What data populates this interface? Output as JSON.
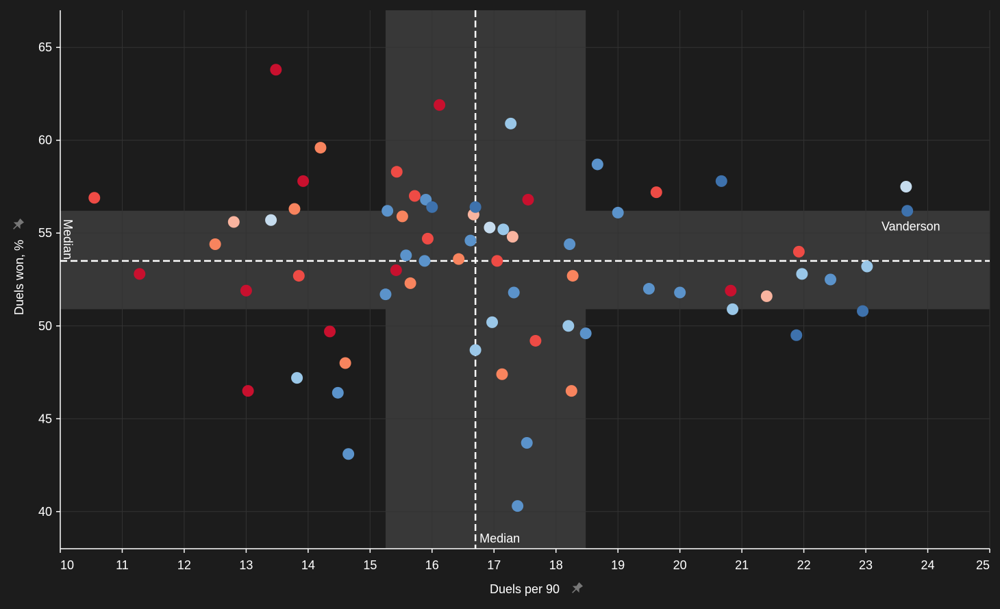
{
  "chart_data": {
    "type": "scatter",
    "xlabel": "Duels per 90",
    "ylabel": "Duels won, %",
    "xlim": [
      10,
      25
    ],
    "ylim": [
      38,
      67
    ],
    "x_ticks": [
      10,
      11,
      12,
      13,
      14,
      15,
      16,
      17,
      18,
      19,
      20,
      21,
      22,
      23,
      24,
      25
    ],
    "y_ticks": [
      40,
      45,
      50,
      55,
      60,
      65
    ],
    "grid": true,
    "median": {
      "x": 16.7,
      "y": 53.5,
      "x_label": "Median",
      "y_label": "Median"
    },
    "bands": {
      "x_range": [
        15.25,
        18.48
      ],
      "y_range": [
        50.9,
        56.2
      ]
    },
    "colors": {
      "background": "#1c1c1c",
      "band": "#383838",
      "grid": "#333333",
      "dark_red": "#c8102e",
      "red": "#ee4b45",
      "salmon": "#f8845e",
      "light_salmon": "#f9b49f",
      "pale_blue": "#c6dcee",
      "light_blue": "#9ac7e8",
      "mid_blue": "#5b93cb",
      "dark_blue": "#3e72ad"
    },
    "points": [
      {
        "x": 10.55,
        "y": 56.9,
        "c": "red"
      },
      {
        "x": 11.28,
        "y": 52.8,
        "c": "dark_red"
      },
      {
        "x": 12.5,
        "y": 54.4,
        "c": "salmon"
      },
      {
        "x": 12.8,
        "y": 55.6,
        "c": "light_salmon"
      },
      {
        "x": 13.0,
        "y": 51.9,
        "c": "dark_red"
      },
      {
        "x": 13.03,
        "y": 46.5,
        "c": "dark_red"
      },
      {
        "x": 13.48,
        "y": 63.8,
        "c": "dark_red"
      },
      {
        "x": 13.4,
        "y": 55.7,
        "c": "pale_blue"
      },
      {
        "x": 13.78,
        "y": 56.3,
        "c": "salmon"
      },
      {
        "x": 13.85,
        "y": 52.7,
        "c": "red"
      },
      {
        "x": 13.92,
        "y": 57.8,
        "c": "dark_red"
      },
      {
        "x": 13.82,
        "y": 47.2,
        "c": "light_blue"
      },
      {
        "x": 14.2,
        "y": 59.6,
        "c": "salmon"
      },
      {
        "x": 14.35,
        "y": 49.7,
        "c": "dark_red"
      },
      {
        "x": 14.48,
        "y": 46.4,
        "c": "mid_blue"
      },
      {
        "x": 14.6,
        "y": 48.0,
        "c": "salmon"
      },
      {
        "x": 14.65,
        "y": 43.1,
        "c": "mid_blue"
      },
      {
        "x": 15.25,
        "y": 51.7,
        "c": "mid_blue"
      },
      {
        "x": 15.28,
        "y": 56.2,
        "c": "mid_blue"
      },
      {
        "x": 15.42,
        "y": 53.0,
        "c": "dark_red"
      },
      {
        "x": 15.43,
        "y": 58.3,
        "c": "red"
      },
      {
        "x": 15.52,
        "y": 55.9,
        "c": "salmon"
      },
      {
        "x": 15.58,
        "y": 53.8,
        "c": "mid_blue"
      },
      {
        "x": 15.65,
        "y": 52.3,
        "c": "salmon"
      },
      {
        "x": 15.72,
        "y": 57.0,
        "c": "red"
      },
      {
        "x": 15.88,
        "y": 53.5,
        "c": "mid_blue"
      },
      {
        "x": 15.9,
        "y": 56.8,
        "c": "mid_blue"
      },
      {
        "x": 15.93,
        "y": 54.7,
        "c": "red"
      },
      {
        "x": 16.0,
        "y": 56.4,
        "c": "dark_blue"
      },
      {
        "x": 16.12,
        "y": 61.9,
        "c": "dark_red"
      },
      {
        "x": 16.43,
        "y": 53.6,
        "c": "salmon"
      },
      {
        "x": 16.62,
        "y": 54.6,
        "c": "mid_blue"
      },
      {
        "x": 16.67,
        "y": 56.0,
        "c": "light_salmon"
      },
      {
        "x": 16.7,
        "y": 56.4,
        "c": "dark_blue"
      },
      {
        "x": 16.7,
        "y": 48.7,
        "c": "light_blue"
      },
      {
        "x": 16.93,
        "y": 55.3,
        "c": "pale_blue"
      },
      {
        "x": 16.97,
        "y": 50.2,
        "c": "light_blue"
      },
      {
        "x": 17.05,
        "y": 53.5,
        "c": "red"
      },
      {
        "x": 17.13,
        "y": 47.4,
        "c": "salmon"
      },
      {
        "x": 17.15,
        "y": 55.2,
        "c": "light_blue"
      },
      {
        "x": 17.27,
        "y": 60.9,
        "c": "light_blue"
      },
      {
        "x": 17.3,
        "y": 54.8,
        "c": "light_salmon"
      },
      {
        "x": 17.32,
        "y": 51.8,
        "c": "mid_blue"
      },
      {
        "x": 17.38,
        "y": 40.3,
        "c": "mid_blue"
      },
      {
        "x": 17.53,
        "y": 43.7,
        "c": "mid_blue"
      },
      {
        "x": 17.55,
        "y": 56.8,
        "c": "dark_red"
      },
      {
        "x": 17.67,
        "y": 49.2,
        "c": "red"
      },
      {
        "x": 18.2,
        "y": 50.0,
        "c": "light_blue"
      },
      {
        "x": 18.22,
        "y": 54.4,
        "c": "mid_blue"
      },
      {
        "x": 18.25,
        "y": 46.5,
        "c": "salmon"
      },
      {
        "x": 18.27,
        "y": 52.7,
        "c": "salmon"
      },
      {
        "x": 18.48,
        "y": 49.6,
        "c": "mid_blue"
      },
      {
        "x": 18.67,
        "y": 58.7,
        "c": "mid_blue"
      },
      {
        "x": 19.0,
        "y": 56.1,
        "c": "mid_blue"
      },
      {
        "x": 19.5,
        "y": 52.0,
        "c": "mid_blue"
      },
      {
        "x": 19.62,
        "y": 57.2,
        "c": "red"
      },
      {
        "x": 20.0,
        "y": 51.8,
        "c": "mid_blue"
      },
      {
        "x": 20.67,
        "y": 57.8,
        "c": "dark_blue"
      },
      {
        "x": 20.82,
        "y": 51.9,
        "c": "dark_red"
      },
      {
        "x": 20.85,
        "y": 50.9,
        "c": "light_blue"
      },
      {
        "x": 21.4,
        "y": 51.6,
        "c": "light_salmon"
      },
      {
        "x": 21.88,
        "y": 49.5,
        "c": "dark_blue"
      },
      {
        "x": 21.92,
        "y": 54.0,
        "c": "red"
      },
      {
        "x": 21.97,
        "y": 52.8,
        "c": "light_blue"
      },
      {
        "x": 22.43,
        "y": 52.5,
        "c": "mid_blue"
      },
      {
        "x": 22.95,
        "y": 50.8,
        "c": "dark_blue"
      },
      {
        "x": 23.02,
        "y": 53.2,
        "c": "light_blue"
      },
      {
        "x": 23.65,
        "y": 57.5,
        "c": "pale_blue"
      },
      {
        "x": 23.67,
        "y": 56.2,
        "c": "dark_blue",
        "label": "Vanderson"
      }
    ]
  }
}
